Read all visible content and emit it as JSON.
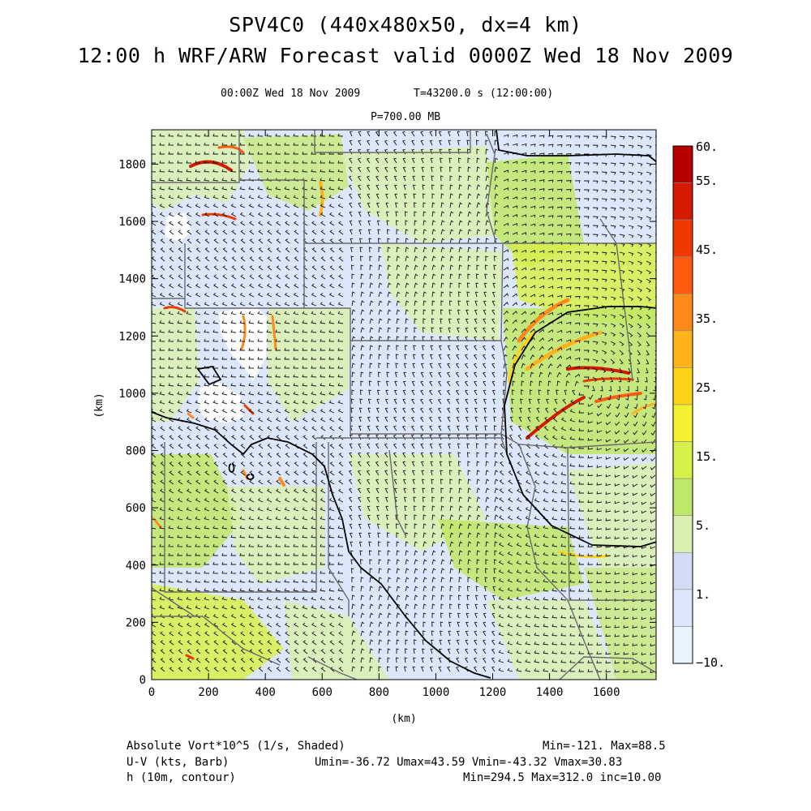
{
  "header": {
    "title_line1": "SPV4C0 (440x480x50, dx=4 km)",
    "title_line2": "12:00 h WRF/ARW Forecast valid 0000Z Wed 18 Nov 2009",
    "valid_time": "00:00Z Wed 18 Nov 2009",
    "model_time": "T=43200.0 s (12:00:00)",
    "pressure_level": "P=700.00 MB"
  },
  "axes": {
    "x_label": "(km)",
    "y_label": "(km)",
    "x_ticks": [
      "0",
      "200",
      "400",
      "600",
      "800",
      "1000",
      "1200",
      "1400",
      "1600"
    ],
    "y_ticks": [
      "0",
      "200",
      "400",
      "600",
      "800",
      "1000",
      "1200",
      "1400",
      "1600",
      "1800"
    ]
  },
  "colorbar": {
    "labels": [
      "60.",
      "55.",
      "45.",
      "35.",
      "25.",
      "15.",
      "5.",
      "1.",
      "−10."
    ],
    "colors": [
      "#b80000",
      "#d41a00",
      "#ee3a00",
      "#ff5a10",
      "#ff8a1a",
      "#ffb21a",
      "#ffd21a",
      "#f2f232",
      "#d8f04a",
      "#bfe866",
      "#d9f0b0",
      "#d2dcf6",
      "#dde7fb",
      "#e8f3fd"
    ]
  },
  "footer": {
    "field1_name": "Absolute Vort*10^5 (1/s, Shaded)",
    "field1_stats": "Min=-121. Max=88.5",
    "field2_name": "U-V (kts, Barb)",
    "field2_stats": "Umin=-36.72 Umax=43.59 Vmin=-43.32 Vmax=30.83",
    "field3_name": "h (10m, contour)",
    "field3_stats": "Min=294.5 Max=312.0 inc=10.00"
  }
}
